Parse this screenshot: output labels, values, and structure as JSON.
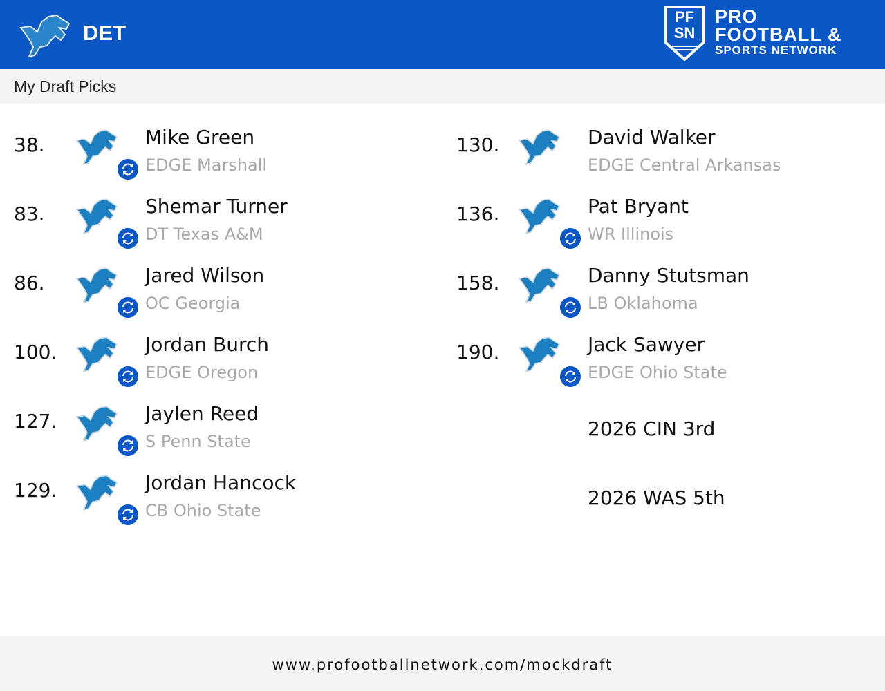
{
  "header": {
    "team": "DET",
    "brand": {
      "line1": "PRO",
      "line2": "FOOTBALL &",
      "line3": "SPORTS NETWORK",
      "shield_letters": "PFSN"
    },
    "colors": {
      "brand_blue": "#0b57c6",
      "lions_blue": "#0076b6"
    }
  },
  "section_title": "My Draft Picks",
  "left_picks": [
    {
      "number": "38.",
      "name": "Mike Green",
      "detail": "EDGE Marshall",
      "traded": true
    },
    {
      "number": "83.",
      "name": "Shemar Turner",
      "detail": "DT Texas A&M",
      "traded": true
    },
    {
      "number": "86.",
      "name": "Jared Wilson",
      "detail": "OC Georgia",
      "traded": true
    },
    {
      "number": "100.",
      "name": "Jordan Burch",
      "detail": "EDGE Oregon",
      "traded": true
    },
    {
      "number": "127.",
      "name": "Jaylen Reed",
      "detail": "S Penn State",
      "traded": true
    },
    {
      "number": "129.",
      "name": "Jordan Hancock",
      "detail": "CB Ohio State",
      "traded": true
    }
  ],
  "right_picks": [
    {
      "number": "130.",
      "name": "David Walker",
      "detail": "EDGE Central Arkansas",
      "traded": false
    },
    {
      "number": "136.",
      "name": "Pat Bryant",
      "detail": "WR Illinois",
      "traded": true
    },
    {
      "number": "158.",
      "name": "Danny Stutsman",
      "detail": "LB Oklahoma",
      "traded": true
    },
    {
      "number": "190.",
      "name": "Jack Sawyer",
      "detail": "EDGE Ohio State",
      "traded": true
    }
  ],
  "future_picks": [
    "2026 CIN 3rd",
    "2026 WAS 5th"
  ],
  "footer": {
    "url": "www.profootballnetwork.com/mockdraft"
  }
}
